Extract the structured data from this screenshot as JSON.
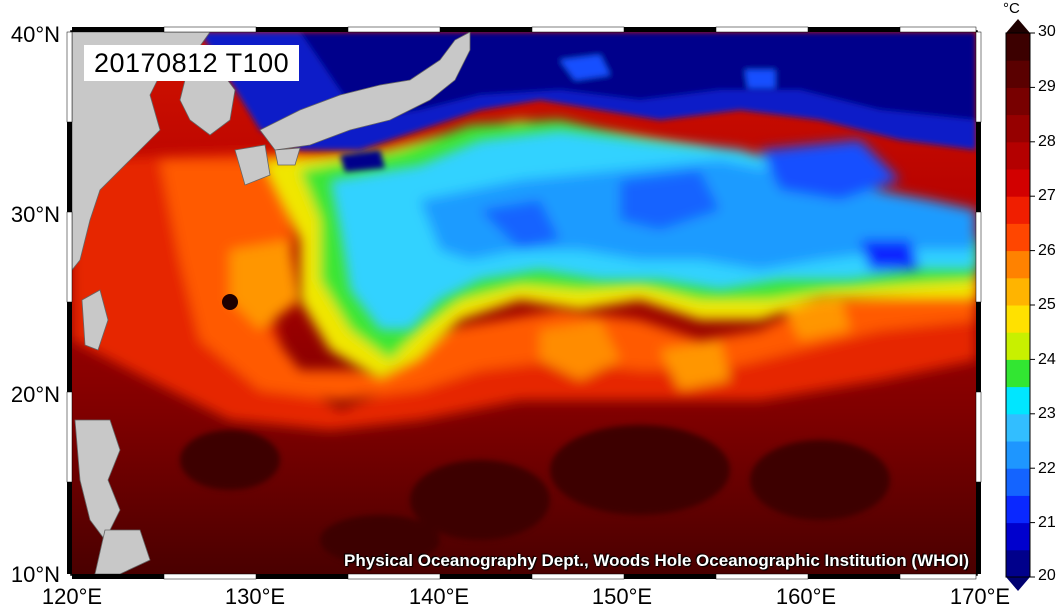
{
  "map": {
    "title": "20170812 T100",
    "credit": "Physical Oceanography Dept., Woods Hole Oceanographic Institution (WHOI)",
    "lat_labels": [
      "40°N",
      "30°N",
      "20°N",
      "10°N"
    ],
    "lon_labels": [
      "120°E",
      "130°E",
      "140°E",
      "150°E",
      "160°E",
      "170°E"
    ],
    "lat_range": [
      10,
      40
    ],
    "lon_range": [
      120,
      170
    ],
    "land_color": "#c8c8c8",
    "colorbar": {
      "unit": "°C",
      "min": 20,
      "max": 30,
      "tick_labels": [
        "30",
        "29",
        "28",
        "27",
        "26",
        "25",
        "24",
        "23",
        "22",
        "21",
        "20"
      ],
      "colors": [
        "#00008b",
        "#0000cd",
        "#0a28ff",
        "#1464ff",
        "#1e96ff",
        "#32beff",
        "#00e6ff",
        "#32e632",
        "#c8f000",
        "#ffe100",
        "#ffb400",
        "#ff8200",
        "#ff4600",
        "#f01e00",
        "#d20000",
        "#b40000",
        "#960000",
        "#780000",
        "#5a0000",
        "#3c0000"
      ]
    }
  }
}
